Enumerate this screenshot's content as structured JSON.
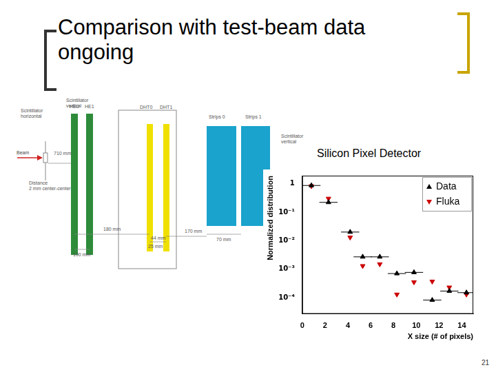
{
  "title": "Comparison with test-beam data ongoing",
  "page_number": "21",
  "chart_label": "Silicon Pixel Detector",
  "diagram": {
    "beam": "Beam",
    "scintillator_vertical": "Scintillator vertical",
    "scintillator_horizontal": "Scintillator horizontal",
    "planes": [
      "HE0",
      "HE1",
      "DHT0",
      "DHT1",
      "Strips 0",
      "Strips 1"
    ],
    "dimensions": [
      "710 mm",
      "Distance 2 mm center-center",
      "180 mm",
      "44 mm",
      "25 mm",
      "170 mm",
      "70 mm",
      "100 mm"
    ]
  },
  "chart_data": {
    "type": "scatter",
    "x_label": "X size (# of pixels)",
    "y_label": "Normalized distribution",
    "log": "y",
    "grid": false,
    "legend": "upper right",
    "xlim": [
      0,
      15
    ],
    "xticks": [
      0,
      2,
      4,
      6,
      8,
      10,
      12,
      14
    ],
    "ylim": [
      2.7e-05,
      1.9
    ],
    "yticks": [
      {
        "value": 0.0001,
        "label": "10⁻⁴"
      },
      {
        "value": 0.001,
        "label": "10⁻³"
      },
      {
        "value": 0.01,
        "label": "10⁻²"
      },
      {
        "value": 0.1,
        "label": "10⁻¹"
      },
      1
    ],
    "series": [
      {
        "name": "Data",
        "color": "#000000",
        "marker": "triangle",
        "x": [
          0.8,
          2.3,
          4.2,
          5.3,
          6.8,
          8.3,
          9.8,
          11.4,
          12.9,
          14.4
        ],
        "values": [
          0.86,
          0.22,
          0.02,
          0.0027,
          0.0027,
          0.0007,
          0.00077,
          8.2e-05,
          0.00017,
          0.00015
        ],
        "x_err": [
          0.8,
          0.8,
          0.8,
          0.8,
          0.8,
          0.8,
          0.8,
          0.8,
          0.8,
          0.8
        ]
      },
      {
        "name": "Fluka",
        "color": "#cc0000",
        "marker": "triangle_down",
        "x": [
          0.8,
          2.3,
          4.2,
          5.3,
          6.8,
          8.3,
          9.8,
          11.4,
          12.9,
          14.4
        ],
        "values": [
          0.82,
          0.3,
          0.013,
          0.0013,
          0.0015,
          0.00013,
          0.00035,
          0.00037,
          0.00023,
          0.00013
        ]
      }
    ]
  }
}
